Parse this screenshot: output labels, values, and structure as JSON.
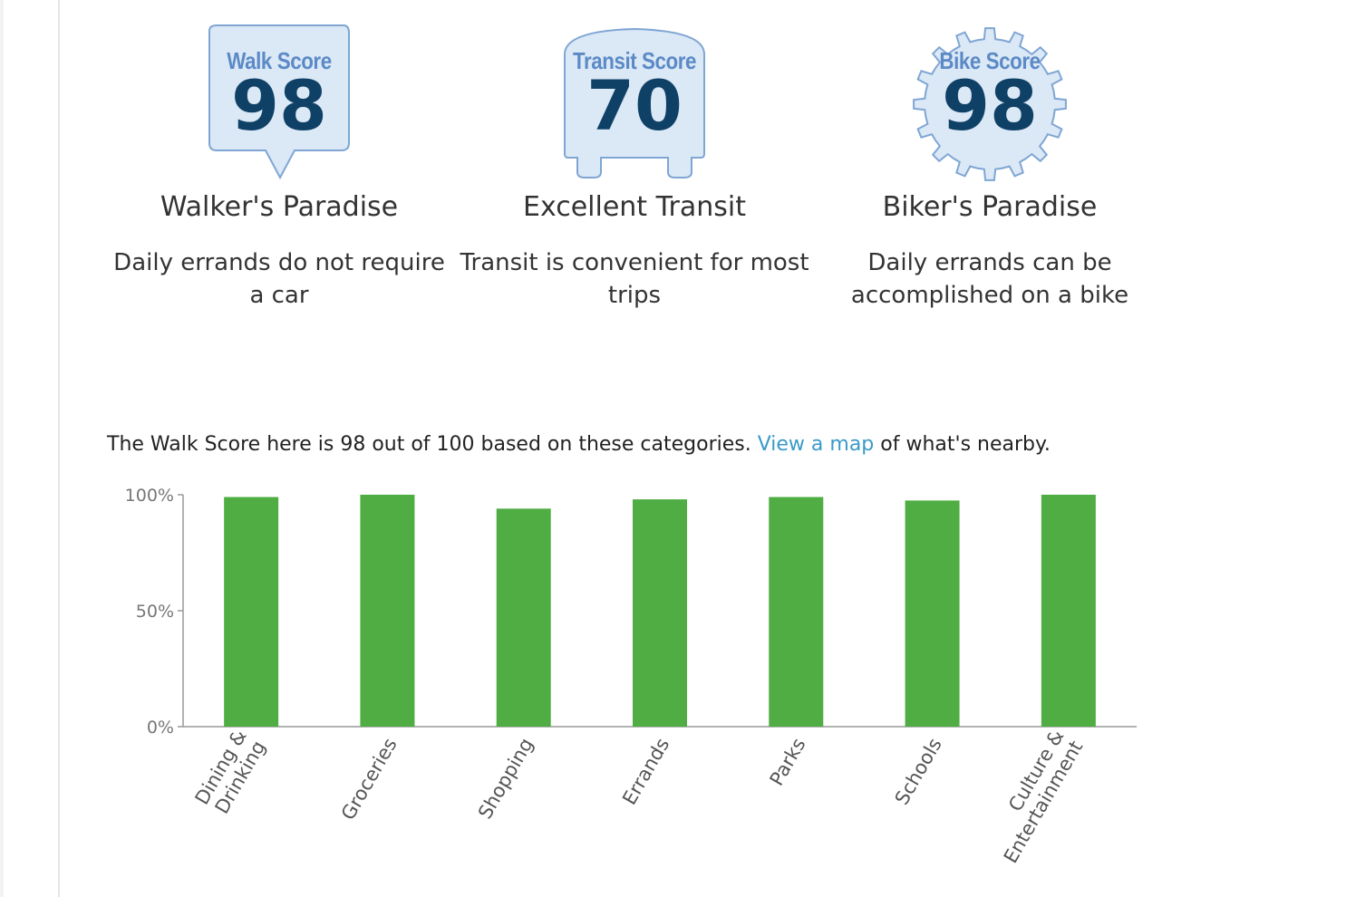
{
  "scores": [
    {
      "key": "walk",
      "badge_label": "Walk Score",
      "value": "98",
      "title": "Walker's Paradise",
      "description": "Daily errands do not require a car",
      "icon": "walk-score-speech-bubble-icon"
    },
    {
      "key": "transit",
      "badge_label": "Transit Score",
      "value": "70",
      "title": "Excellent Transit",
      "description": "Transit is convenient for most trips",
      "icon": "transit-score-bus-icon"
    },
    {
      "key": "bike",
      "badge_label": "Bike Score",
      "value": "98",
      "title": "Biker's Paradise",
      "description": "Daily errands can be accomplished on a bike",
      "icon": "bike-score-gear-icon"
    }
  ],
  "summary": {
    "before_link": "The Walk Score here is 98 out of 100 based on these categories. ",
    "link_text": "View a map",
    "after_link": " of what's nearby."
  },
  "colors": {
    "badge_fill": "#dbe8f6",
    "badge_stroke": "#7fa6d3",
    "badge_label": "#5b8ac6",
    "badge_value": "#0f4167",
    "bar": "#4fad43",
    "link": "#3a9ac9"
  },
  "chart_data": {
    "type": "bar",
    "categories": [
      "Dining & Drinking",
      "Groceries",
      "Shopping",
      "Errands",
      "Parks",
      "Schools",
      "Culture & Entertainment"
    ],
    "category_lines": [
      [
        "Dining &",
        "Drinking"
      ],
      [
        "Groceries"
      ],
      [
        "Shopping"
      ],
      [
        "Errands"
      ],
      [
        "Parks"
      ],
      [
        "Schools"
      ],
      [
        "Culture &",
        "Entertainment"
      ]
    ],
    "values": [
      99,
      100,
      94,
      98,
      99,
      97.5,
      100
    ],
    "yticks": [
      0,
      50,
      100
    ],
    "ytick_labels": [
      "0%",
      "50%",
      "100%"
    ],
    "ylim": [
      0,
      100
    ],
    "title": "",
    "xlabel": "",
    "ylabel": "",
    "grid": false,
    "legend": "none"
  }
}
